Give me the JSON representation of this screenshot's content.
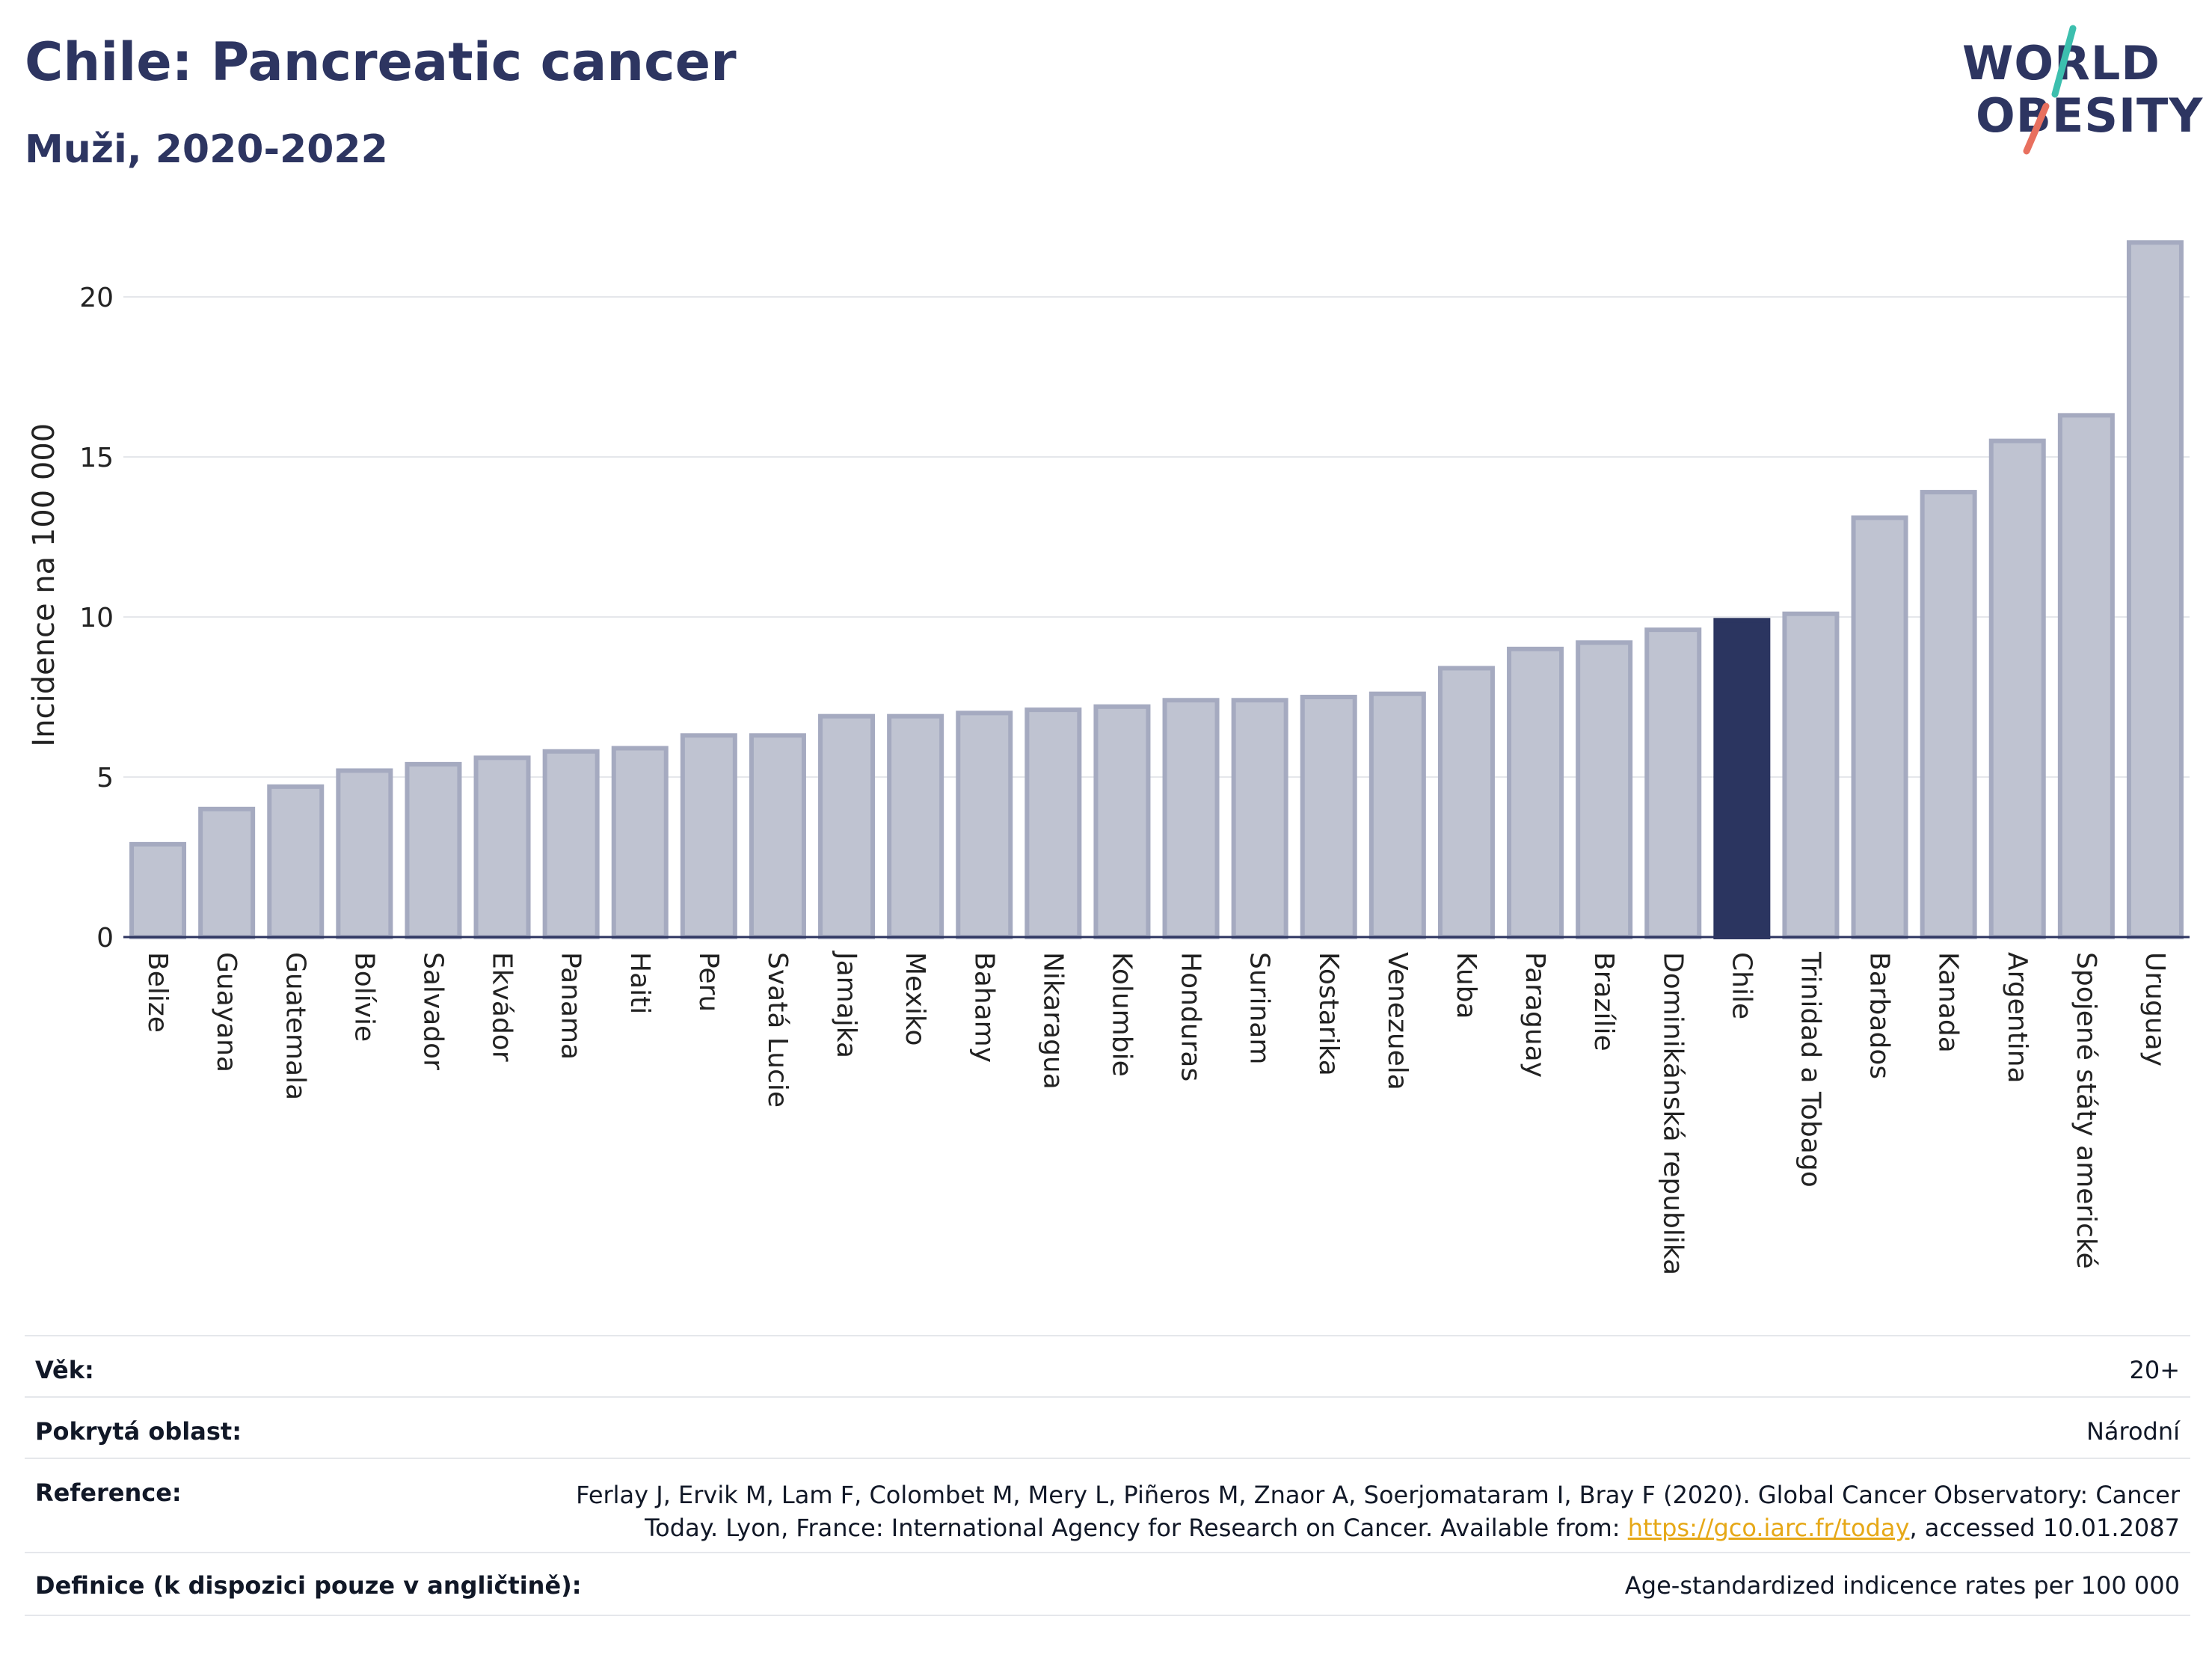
{
  "header": {
    "title": "Chile: Pancreatic cancer",
    "subtitle": "Muži, 2020-2022"
  },
  "logo": {
    "line1": "WORLD",
    "line2": "OBESITY",
    "accent_colors": [
      "#3cbfae",
      "#e8705f"
    ]
  },
  "colors": {
    "bar": "#bfc3d1",
    "bar_stroke": "#a5aac0",
    "highlight": "#2b3560",
    "grid": "#e5e7eb",
    "axis": "#2d3561"
  },
  "chart_data": {
    "type": "bar",
    "ylabel": "Incidence na 100 000",
    "ylim": [
      0,
      22
    ],
    "yticks": [
      0,
      5,
      10,
      15,
      20
    ],
    "highlight": "Chile",
    "categories": [
      "Belize",
      "Guayana",
      "Guatemala",
      "Bolívie",
      "Salvador",
      "Ekvádor",
      "Panama",
      "Haiti",
      "Peru",
      "Svatá Lucie",
      "Jamajka",
      "Mexiko",
      "Bahamy",
      "Nikaragua",
      "Kolumbie",
      "Honduras",
      "Surinam",
      "Kostarika",
      "Venezuela",
      "Kuba",
      "Paraguay",
      "Brazílie",
      "Dominikánská republika",
      "Chile",
      "Trinidad a Tobago",
      "Barbados",
      "Kanada",
      "Argentina",
      "Spojené státy americké",
      "Uruguay"
    ],
    "values": [
      2.9,
      4.0,
      4.7,
      5.2,
      5.4,
      5.6,
      5.8,
      5.9,
      6.3,
      6.3,
      6.9,
      6.9,
      7.0,
      7.1,
      7.2,
      7.4,
      7.4,
      7.5,
      7.6,
      8.4,
      9.0,
      9.2,
      9.6,
      9.9,
      10.1,
      13.1,
      13.9,
      15.5,
      16.3,
      21.7
    ]
  },
  "info": {
    "age_label": "Věk:",
    "age_value": "20+",
    "area_label": "Pokrytá oblast:",
    "area_value": "Národní",
    "reference_label": "Reference:",
    "reference_line1": "Ferlay J, Ervik M, Lam F, Colombet M, Mery L, Piñeros M, Znaor A, Soerjomataram I, Bray F (2020). Global Cancer Observatory: Cancer",
    "reference_line2_pre": "Today. Lyon, France: International Agency for Research on Cancer. Available from: ",
    "reference_link": "https://gco.iarc.fr/today",
    "reference_line2_post": ", accessed 10.01.2087",
    "definition_label": "Definice (k dispozici pouze v angličtině):",
    "definition_value": "Age-standardized indicence rates per 100 000"
  }
}
